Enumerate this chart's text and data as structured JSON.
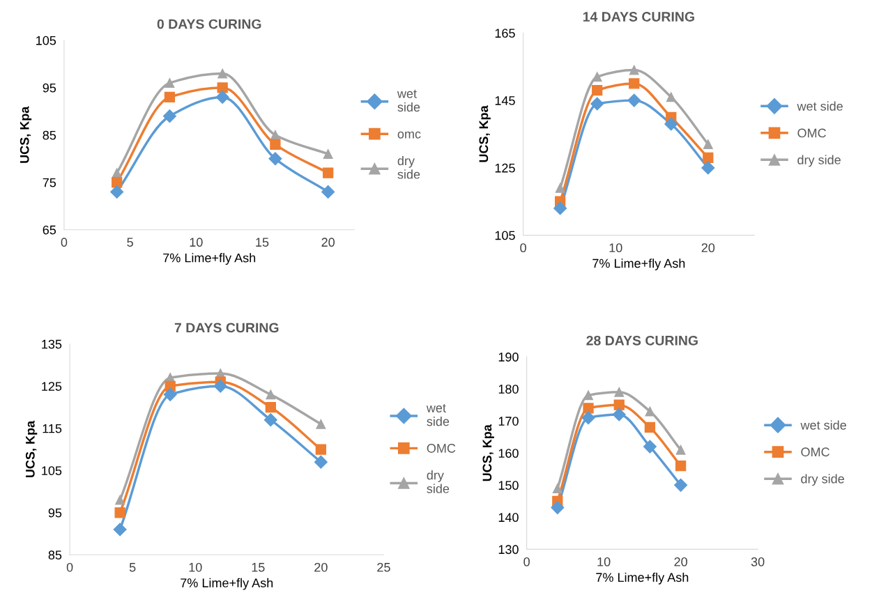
{
  "chart_data": [
    {
      "type": "line",
      "title": "0 DAYS CURING",
      "xlabel": "7% Lime+fly Ash",
      "ylabel": "UCS, Kpa",
      "x": [
        4,
        8,
        12,
        16,
        20
      ],
      "xlim": [
        0,
        22
      ],
      "xticks": [
        0,
        5,
        10,
        15,
        20
      ],
      "ylim": [
        65,
        105
      ],
      "yticks": [
        65,
        75,
        85,
        95,
        105
      ],
      "grid": false,
      "legend": "right",
      "series": [
        {
          "name": "wet\nside",
          "color": "#5b9bd5",
          "marker": "diamond",
          "values": [
            73,
            89,
            93,
            80,
            73
          ]
        },
        {
          "name": "omc",
          "color": "#ed7d31",
          "marker": "square",
          "values": [
            75,
            93,
            95,
            83,
            77
          ]
        },
        {
          "name": "dry\nside",
          "color": "#a5a5a5",
          "marker": "triangle",
          "values": [
            77,
            96,
            98,
            85,
            81
          ]
        }
      ]
    },
    {
      "type": "line",
      "title": "14 DAYS CURING",
      "xlabel": "7% Lime+fly Ash",
      "ylabel": "UCS, Kpa",
      "x": [
        4,
        8,
        12,
        16,
        20
      ],
      "xlim": [
        0,
        25
      ],
      "xticks": [
        0,
        10,
        20
      ],
      "ylim": [
        105,
        165
      ],
      "yticks": [
        105,
        125,
        145,
        165
      ],
      "grid": false,
      "legend": "right",
      "series": [
        {
          "name": "wet side",
          "color": "#5b9bd5",
          "marker": "diamond",
          "values": [
            113,
            144,
            145,
            138,
            125
          ]
        },
        {
          "name": "OMC",
          "color": "#ed7d31",
          "marker": "square",
          "values": [
            115,
            148,
            150,
            140,
            128
          ]
        },
        {
          "name": "dry side",
          "color": "#a5a5a5",
          "marker": "triangle",
          "values": [
            119,
            152,
            154,
            146,
            132
          ]
        }
      ]
    },
    {
      "type": "line",
      "title": "7 DAYS CURING",
      "xlabel": "7% Lime+fly Ash",
      "ylabel": "UCS, Kpa",
      "x": [
        4,
        8,
        12,
        16,
        20
      ],
      "xlim": [
        0,
        25
      ],
      "xticks": [
        0,
        5,
        10,
        15,
        20,
        25
      ],
      "ylim": [
        85,
        135
      ],
      "yticks": [
        85,
        95,
        105,
        115,
        125,
        135
      ],
      "grid": false,
      "legend": "right",
      "series": [
        {
          "name": "wet\nside",
          "color": "#5b9bd5",
          "marker": "diamond",
          "values": [
            91,
            123,
            125,
            117,
            107
          ]
        },
        {
          "name": "OMC",
          "color": "#ed7d31",
          "marker": "square",
          "values": [
            95,
            125,
            126,
            120,
            110
          ]
        },
        {
          "name": "dry\nside",
          "color": "#a5a5a5",
          "marker": "triangle",
          "values": [
            98,
            127,
            128,
            123,
            116
          ]
        }
      ]
    },
    {
      "type": "line",
      "title": "28 DAYS CURING",
      "xlabel": "7% Lime+fly Ash",
      "ylabel": "UCS, Kpa",
      "x": [
        4,
        8,
        12,
        16,
        20
      ],
      "xlim": [
        0,
        30
      ],
      "xticks": [
        0,
        10,
        20,
        30
      ],
      "ylim": [
        130,
        190
      ],
      "yticks": [
        130,
        140,
        150,
        160,
        170,
        180,
        190
      ],
      "grid": false,
      "legend": "right",
      "series": [
        {
          "name": "wet side",
          "color": "#5b9bd5",
          "marker": "diamond",
          "values": [
            143,
            171,
            172,
            162,
            150
          ]
        },
        {
          "name": "OMC",
          "color": "#ed7d31",
          "marker": "square",
          "values": [
            145,
            174,
            175,
            168,
            156
          ]
        },
        {
          "name": "dry side",
          "color": "#a5a5a5",
          "marker": "triangle",
          "values": [
            149,
            178,
            179,
            173,
            161
          ]
        }
      ]
    }
  ]
}
